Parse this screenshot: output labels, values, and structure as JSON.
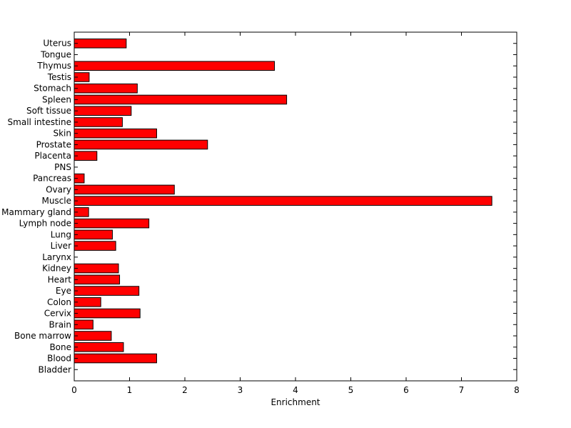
{
  "chart_data": {
    "type": "bar",
    "orientation": "horizontal",
    "xlabel": "Enrichment",
    "ylabel": "",
    "title": "",
    "xlim": [
      0,
      8
    ],
    "xticks": [
      "0",
      "1",
      "2",
      "3",
      "4",
      "5",
      "6",
      "7",
      "8"
    ],
    "grid": false,
    "bar_color": "#ff0000",
    "categories": [
      "Bladder",
      "Blood",
      "Bone",
      "Bone marrow",
      "Brain",
      "Cervix",
      "Colon",
      "Eye",
      "Heart",
      "Kidney",
      "Larynx",
      "Liver",
      "Lung",
      "Lymph node",
      "Mammary gland",
      "Muscle",
      "Ovary",
      "Pancreas",
      "PNS",
      "Placenta",
      "Prostate",
      "Skin",
      "Small intestine",
      "Soft tissue",
      "Spleen",
      "Stomach",
      "Testis",
      "Thymus",
      "Tongue",
      "Uterus"
    ],
    "values": [
      0,
      1.49,
      0.89,
      0.67,
      0.34,
      1.19,
      0.48,
      1.17,
      0.82,
      0.8,
      0,
      0.75,
      0.69,
      1.35,
      0.26,
      7.55,
      1.81,
      0.18,
      0,
      0.41,
      2.41,
      1.49,
      0.87,
      1.03,
      3.84,
      1.14,
      0.27,
      3.62,
      0,
      0.94
    ]
  }
}
